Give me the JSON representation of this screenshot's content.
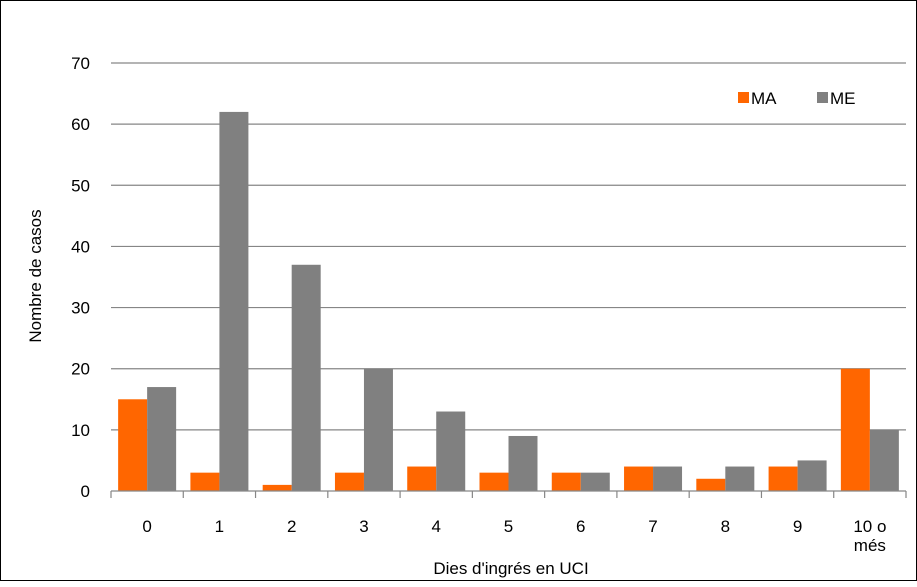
{
  "chart_data": {
    "type": "bar",
    "categories": [
      "0",
      "1",
      "2",
      "3",
      "4",
      "5",
      "6",
      "7",
      "8",
      "9",
      "10 o més"
    ],
    "series": [
      {
        "name": "MA",
        "color": "#ff6600",
        "values": [
          15,
          3,
          1,
          3,
          4,
          3,
          3,
          4,
          2,
          4,
          20
        ]
      },
      {
        "name": "ME",
        "color": "#808080",
        "values": [
          17,
          62,
          37,
          20,
          13,
          9,
          3,
          4,
          4,
          5,
          10
        ]
      }
    ],
    "title": "",
    "xlabel": "Dies d'ingrés en UCI",
    "ylabel": "Nombre de casos",
    "ylim": [
      0,
      70
    ],
    "yticks": [
      0,
      10,
      20,
      30,
      40,
      50,
      60,
      70
    ],
    "grid": true,
    "legend_position": "top-right"
  }
}
